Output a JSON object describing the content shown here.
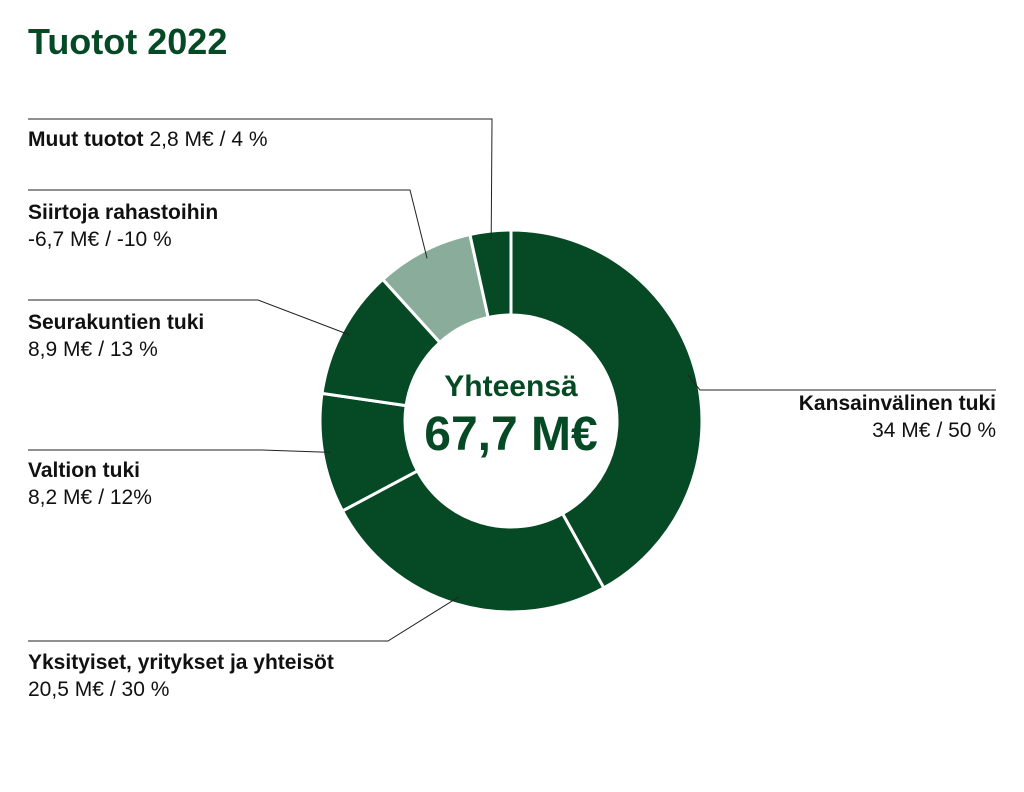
{
  "chart_data": {
    "type": "donut",
    "title": "Tuotot 2022",
    "center_title": "Yhteensä",
    "total": 67.7,
    "total_label": "67,7 M€",
    "categories": [
      "Kansainvälinen tuki",
      "Yksityiset, yritykset ja yhteisöt",
      "Valtion tuki",
      "Seurakuntien tuki",
      "Siirtoja rahastoihin",
      "Muut tuotot"
    ],
    "values": [
      34,
      20.5,
      8.2,
      8.9,
      -6.7,
      2.8
    ],
    "value_labels": [
      "34 M€",
      "20,5 M€",
      "8,2 M€",
      "8,9 M€",
      "-6,7 M€",
      "2,8 M€"
    ],
    "shares": [
      50,
      30,
      12,
      13,
      -10,
      4
    ],
    "share_labels": [
      "/ 50 %",
      "/ 30 %",
      "/ 12%",
      "/ 13 %",
      "/ -10 %",
      "/ 4 %"
    ],
    "colors": [
      "#064a25",
      "#064a25",
      "#064a25",
      "#064a25",
      "#8aac9b",
      "#064a25"
    ]
  }
}
